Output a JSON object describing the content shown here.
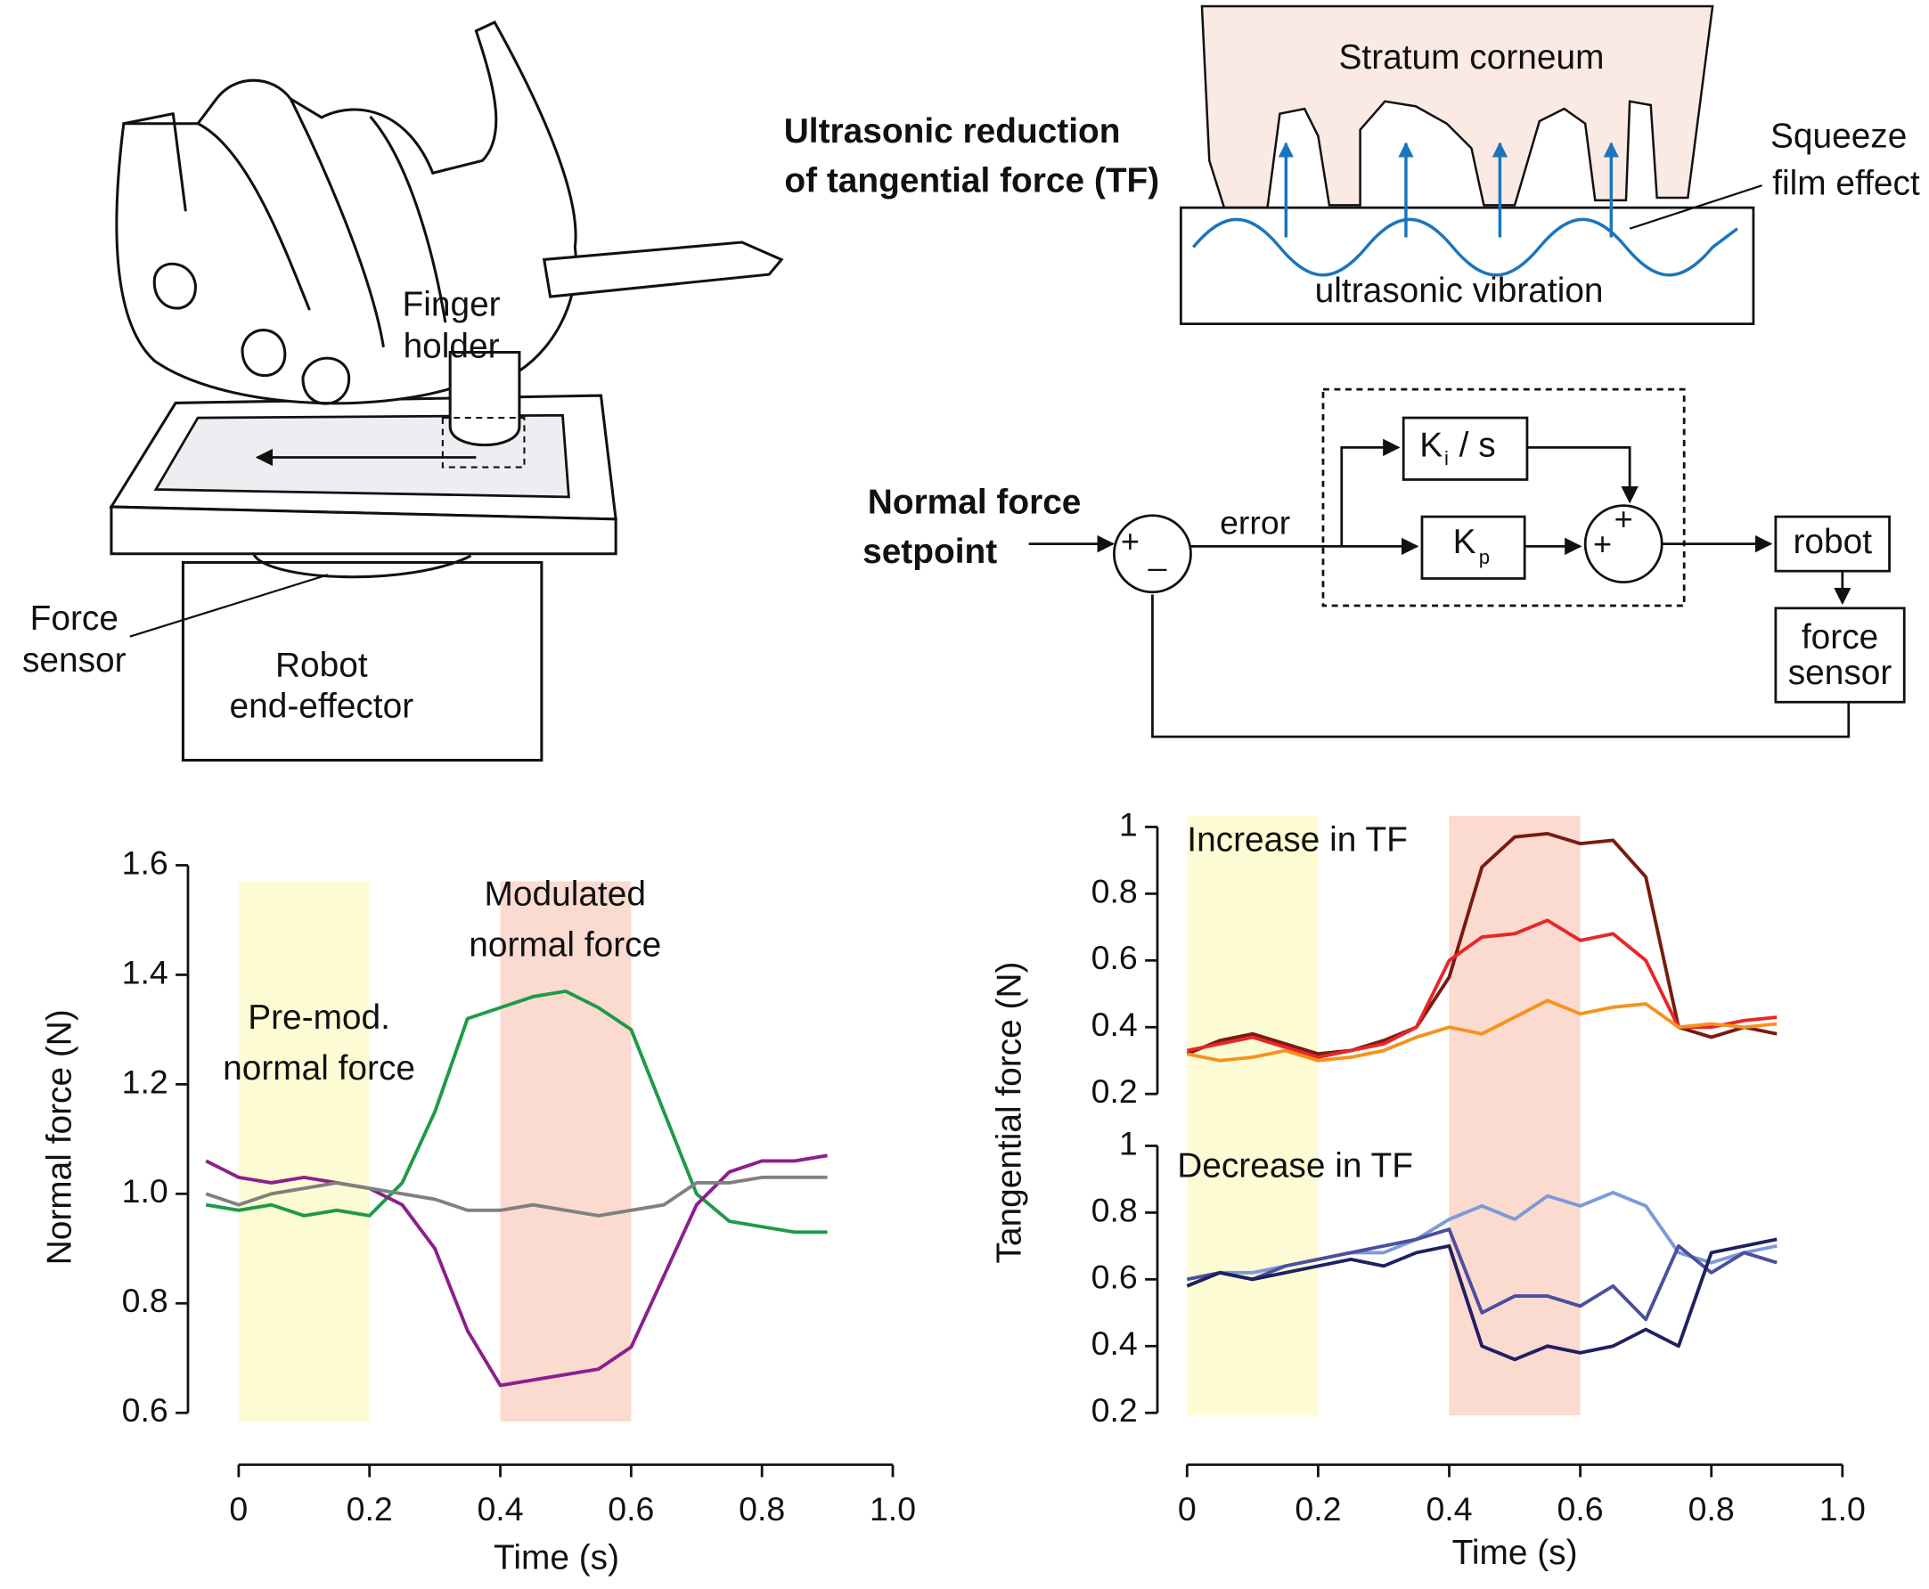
{
  "illustration": {
    "finger_holder": [
      "Finger",
      "holder"
    ],
    "force_sensor": [
      "Force",
      "sensor"
    ],
    "robot": [
      "Robot",
      "end-effector"
    ]
  },
  "squeeze_film": {
    "title": [
      "Ultrasonic reduction",
      "of tangential force (TF)"
    ],
    "layer": "Stratum corneum",
    "effect": [
      "Squeeze",
      "film effect"
    ],
    "vibration": "ultrasonic vibration"
  },
  "control": {
    "setpoint": [
      "Normal force",
      "setpoint"
    ],
    "plus": "+",
    "minus": "_",
    "error": "error",
    "ki": {
      "symbol": "K",
      "subscript": "i",
      "rest": "/ s"
    },
    "kp": {
      "symbol": "K",
      "subscript": "p"
    },
    "sum_signs": [
      "+",
      "+"
    ],
    "robot": "robot",
    "sensor": [
      "force",
      "sensor"
    ]
  },
  "chart_data": [
    {
      "type": "line",
      "ylabel": "Normal force (N)",
      "xlabel": "Time (s)",
      "annotations": [
        "Pre-mod.",
        "normal force",
        "Modulated",
        "normal force"
      ],
      "xlim": [
        0,
        1
      ],
      "xticks": [
        0,
        0.2,
        0.4,
        0.6,
        0.8,
        {
          "value": 1,
          "label": "1.0"
        }
      ],
      "ylim": [
        0.6,
        1.6
      ],
      "yticks": [
        0.6,
        0.8,
        {
          "value": 1,
          "label": "1.0"
        },
        1.2,
        1.4,
        1.6
      ],
      "shaded_regions": [
        {
          "xlim": [
            0,
            0.2
          ],
          "color": "#fdfbd3"
        },
        {
          "xlim": [
            0.4,
            0.6
          ],
          "color": "#fbdad0"
        }
      ],
      "x": [
        -0.05,
        0,
        0.05,
        0.1,
        0.15,
        0.2,
        0.25,
        0.3,
        0.35,
        0.4,
        0.45,
        0.5,
        0.55,
        0.6,
        0.65,
        0.7,
        0.75,
        0.8,
        0.85,
        0.9
      ],
      "series": [
        {
          "color": "#1e9a48",
          "values": [
            0.98,
            0.97,
            0.98,
            0.96,
            0.97,
            0.96,
            1.02,
            1.15,
            1.32,
            1.34,
            1.36,
            1.37,
            1.34,
            1.3,
            1.15,
            1.0,
            0.95,
            0.94,
            0.93,
            0.93
          ]
        },
        {
          "color": "#8b1f8c",
          "values": [
            1.06,
            1.03,
            1.02,
            1.03,
            1.02,
            1.01,
            0.98,
            0.9,
            0.75,
            0.65,
            0.66,
            0.67,
            0.68,
            0.72,
            0.85,
            0.98,
            1.04,
            1.06,
            1.06,
            1.07
          ]
        },
        {
          "color": "#808080",
          "values": [
            1.0,
            0.98,
            1.0,
            1.01,
            1.02,
            1.01,
            1.0,
            0.99,
            0.97,
            0.97,
            0.98,
            0.97,
            0.96,
            0.97,
            0.98,
            1.02,
            1.02,
            1.03,
            1.03,
            1.03
          ]
        }
      ]
    },
    {
      "type": "line",
      "ylabel": "Tangential force (N)",
      "annotations": [
        "Increase in TF"
      ],
      "xlim": [
        0,
        1
      ],
      "ylim": [
        0.2,
        1
      ],
      "yticks": [
        0.2,
        0.4,
        0.6,
        0.8,
        1
      ],
      "shaded_regions": [
        {
          "xlim": [
            0,
            0.2
          ],
          "color": "#fdfbd3"
        },
        {
          "xlim": [
            0.4,
            0.6
          ],
          "color": "#fbdad0"
        }
      ],
      "x": [
        0,
        0.05,
        0.1,
        0.15,
        0.2,
        0.25,
        0.3,
        0.35,
        0.4,
        0.45,
        0.5,
        0.55,
        0.6,
        0.65,
        0.7,
        0.75,
        0.8,
        0.85,
        0.9
      ],
      "series": [
        {
          "color": "#7a1a10",
          "values": [
            0.32,
            0.36,
            0.38,
            0.35,
            0.32,
            0.33,
            0.36,
            0.4,
            0.55,
            0.88,
            0.97,
            0.98,
            0.95,
            0.96,
            0.85,
            0.4,
            0.37,
            0.4,
            0.38
          ]
        },
        {
          "color": "#e8262a",
          "values": [
            0.33,
            0.35,
            0.37,
            0.34,
            0.31,
            0.33,
            0.35,
            0.4,
            0.6,
            0.67,
            0.68,
            0.72,
            0.66,
            0.68,
            0.6,
            0.4,
            0.4,
            0.42,
            0.43
          ]
        },
        {
          "color": "#f5921e",
          "values": [
            0.32,
            0.3,
            0.31,
            0.33,
            0.3,
            0.31,
            0.33,
            0.37,
            0.4,
            0.38,
            0.43,
            0.48,
            0.44,
            0.46,
            0.47,
            0.4,
            0.41,
            0.4,
            0.41
          ]
        }
      ]
    },
    {
      "type": "line",
      "xlabel": "Time (s)",
      "annotations": [
        "Decrease in TF"
      ],
      "xlim": [
        0,
        1
      ],
      "xticks": [
        0,
        0.2,
        0.4,
        0.6,
        0.8,
        {
          "value": 1,
          "label": "1.0"
        }
      ],
      "ylim": [
        0.2,
        1
      ],
      "yticks": [
        0.2,
        0.4,
        0.6,
        0.8,
        1
      ],
      "shaded_regions": [
        {
          "xlim": [
            0,
            0.2
          ],
          "color": "#fdfbd3"
        },
        {
          "xlim": [
            0.4,
            0.6
          ],
          "color": "#fbdad0"
        }
      ],
      "x": [
        0,
        0.05,
        0.1,
        0.15,
        0.2,
        0.25,
        0.3,
        0.35,
        0.4,
        0.45,
        0.5,
        0.55,
        0.6,
        0.65,
        0.7,
        0.75,
        0.8,
        0.85,
        0.9
      ],
      "series": [
        {
          "color": "#7b9bd6",
          "values": [
            0.58,
            0.62,
            0.62,
            0.64,
            0.66,
            0.68,
            0.68,
            0.72,
            0.78,
            0.82,
            0.78,
            0.85,
            0.82,
            0.86,
            0.82,
            0.68,
            0.65,
            0.68,
            0.7
          ]
        },
        {
          "color": "#4a4f9e",
          "values": [
            0.6,
            0.62,
            0.6,
            0.64,
            0.66,
            0.68,
            0.7,
            0.72,
            0.75,
            0.5,
            0.55,
            0.55,
            0.52,
            0.58,
            0.48,
            0.7,
            0.62,
            0.68,
            0.65
          ]
        },
        {
          "color": "#1f2060",
          "values": [
            0.58,
            0.62,
            0.6,
            0.62,
            0.64,
            0.66,
            0.64,
            0.68,
            0.7,
            0.4,
            0.36,
            0.4,
            0.38,
            0.4,
            0.45,
            0.4,
            0.68,
            0.7,
            0.72
          ]
        }
      ]
    }
  ]
}
